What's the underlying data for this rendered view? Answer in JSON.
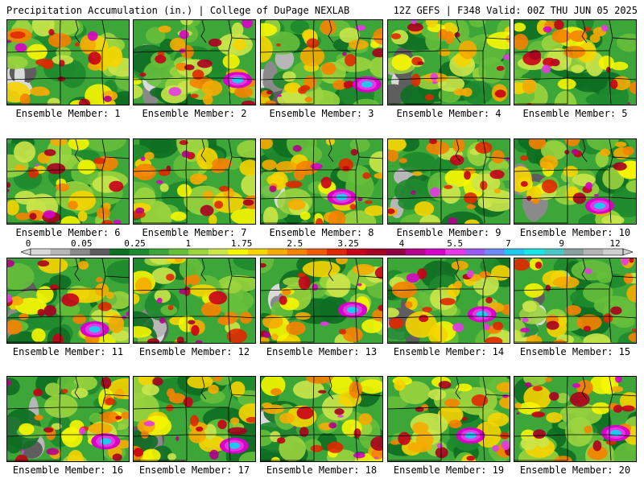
{
  "header": {
    "title_left": "Precipitation Accumulation (in.) | College of DuPage NEXLAB",
    "title_right": "12Z GEFS | F348 Valid: 00Z THU JUN 05 2025"
  },
  "colorbar": {
    "tick_labels": [
      "0",
      "0.05",
      "0.25",
      "1",
      "1.75",
      "2.5",
      "3.25",
      "4",
      "5.5",
      "7",
      "9",
      "12"
    ],
    "colors": [
      "#dadada",
      "#b7b7b7",
      "#8a8a8a",
      "#5e5e5e",
      "#0e6e22",
      "#1e8a2e",
      "#3da639",
      "#66bf3b",
      "#9bd43e",
      "#cbe64a",
      "#f6f600",
      "#f6d400",
      "#f6ab00",
      "#f68200",
      "#f05a00",
      "#e02800",
      "#c8001a",
      "#a80020",
      "#8e0044",
      "#b4008c",
      "#d800c8",
      "#e638e6",
      "#9a5af0",
      "#6e8af6",
      "#20c8f0",
      "#19e6e6",
      "#4ac8c8",
      "#8aa0a0",
      "#b4b4b4",
      "#d0d0d0"
    ]
  },
  "members": [
    {
      "label": "Ensemble Member: 1"
    },
    {
      "label": "Ensemble Member: 2"
    },
    {
      "label": "Ensemble Member: 3"
    },
    {
      "label": "Ensemble Member: 4"
    },
    {
      "label": "Ensemble Member: 5"
    },
    {
      "label": "Ensemble Member: 6"
    },
    {
      "label": "Ensemble Member: 7"
    },
    {
      "label": "Ensemble Member: 8"
    },
    {
      "label": "Ensemble Member: 9"
    },
    {
      "label": "Ensemble Member: 10"
    },
    {
      "label": "Ensemble Member: 11"
    },
    {
      "label": "Ensemble Member: 12"
    },
    {
      "label": "Ensemble Member: 13"
    },
    {
      "label": "Ensemble Member: 14"
    },
    {
      "label": "Ensemble Member: 15"
    },
    {
      "label": "Ensemble Member: 16"
    },
    {
      "label": "Ensemble Member: 17"
    },
    {
      "label": "Ensemble Member: 18"
    },
    {
      "label": "Ensemble Member: 19"
    },
    {
      "label": "Ensemble Member: 20"
    }
  ]
}
